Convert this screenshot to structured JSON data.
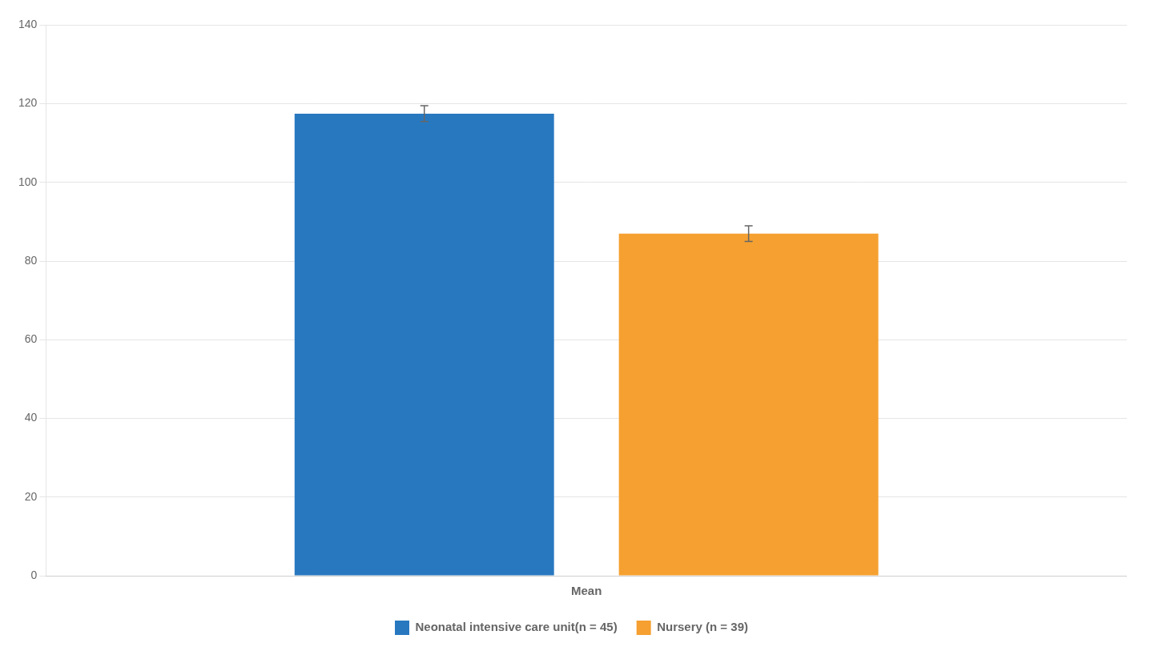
{
  "chart_data": {
    "type": "bar",
    "categories": [
      "Mean"
    ],
    "series": [
      {
        "name": "Neonatal intensive care unit(n = 45)",
        "color": "#2878C0",
        "values": [
          117.5
        ],
        "errors": [
          2.0
        ]
      },
      {
        "name": "Nursery (n = 39)",
        "color": "#F5A030",
        "values": [
          87.0
        ],
        "errors": [
          2.0
        ]
      }
    ],
    "ylim": [
      0,
      140
    ],
    "yticks": [
      0,
      20,
      40,
      60,
      80,
      100,
      120,
      140
    ],
    "grid": true,
    "legend": "bottom"
  }
}
